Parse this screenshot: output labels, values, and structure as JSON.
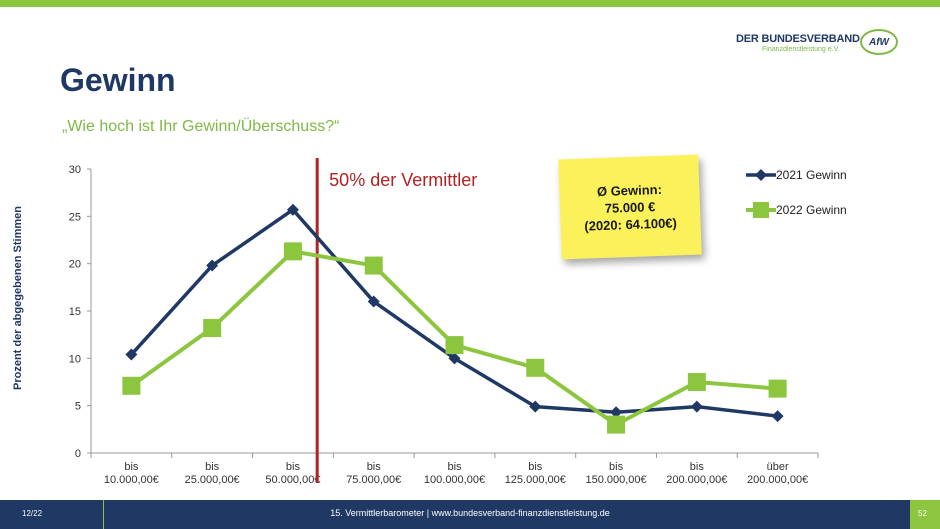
{
  "header": {
    "logo_title": "DER BUNDESVERBAND",
    "logo_subtitle": "Finanzdienstleistung e.V.",
    "logo_mark": "AfW",
    "title": "Gewinn",
    "subtitle": "„Wie hoch ist Ihr Gewinn/Überschuss?“"
  },
  "note": {
    "line1": "Ø Gewinn:",
    "line2": "75.000 €",
    "line3": "(2020: 64.100€)"
  },
  "marker_label": "50% der Vermittler",
  "footer": {
    "date": "12/22",
    "source": "15. Vermittlerbarometer | www.bundesverband-finanzdienstleistung.de",
    "page": "52"
  },
  "colors": {
    "navy": "#1f3864",
    "green": "#8cc63f",
    "red": "#b22222",
    "note": "#fbf15a"
  },
  "chart_data": {
    "type": "line",
    "ylabel": "Prozent der abgegebenen Stimmen",
    "xlabel": "",
    "ylim": [
      0,
      30
    ],
    "yticks": [
      0,
      5,
      10,
      15,
      20,
      25,
      30
    ],
    "categories": [
      [
        "bis",
        "10.000,00€"
      ],
      [
        "bis",
        "25.000,00€"
      ],
      [
        "bis",
        "50.000,00€"
      ],
      [
        "bis",
        "75.000,00€"
      ],
      [
        "bis",
        "100.000,00€"
      ],
      [
        "bis",
        "125.000,00€"
      ],
      [
        "bis",
        "150.000,00€"
      ],
      [
        "bis",
        "200.000,00€"
      ],
      [
        "über",
        "200.000,00€"
      ]
    ],
    "series": [
      {
        "name": "2021 Gewinn",
        "color": "#1f3864",
        "marker": "diamond",
        "values": [
          10.4,
          19.8,
          25.7,
          16.0,
          10.0,
          4.9,
          4.3,
          4.9,
          3.9
        ]
      },
      {
        "name": "2022 Gewinn",
        "color": "#8cc63f",
        "marker": "square",
        "values": [
          7.1,
          13.2,
          21.3,
          19.8,
          11.4,
          9.0,
          3.0,
          7.5,
          6.8
        ]
      }
    ],
    "reference_line": {
      "position": "between bis 50.000,00€ and bis 75.000,00€",
      "label": "50% der Vermittler"
    },
    "legend": "top-right",
    "grid": false
  }
}
